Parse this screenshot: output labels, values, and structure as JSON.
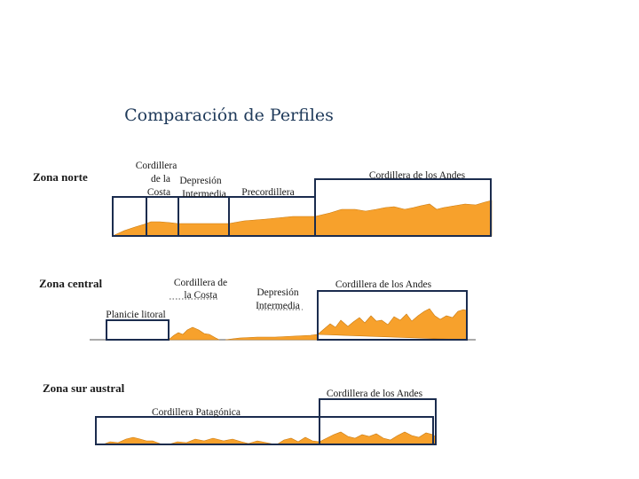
{
  "title": "Comparación de Perfiles",
  "norte": {
    "zone": "Zona norte",
    "cordillera_costa": [
      "Cordillera",
      "de la",
      "Costa"
    ],
    "depresion": [
      "Depresión",
      "Intermedia"
    ],
    "precordillera": "Precordillera",
    "andes": "Cordillera de los Andes"
  },
  "central": {
    "zone": "Zona central",
    "planicie": "Planicie litoral",
    "cordillera_costa": [
      "Cordillera de",
      "la Costa"
    ],
    "depresion": [
      "Depresión",
      "Intermedia"
    ],
    "andes": "Cordillera de los Andes"
  },
  "sur": {
    "zone": "Zona sur austral",
    "patagonica": "Cordillera Patagónica",
    "andes": "Cordillera de los Andes"
  },
  "colors": {
    "relief": "#f7a12c",
    "frame": "#1b2c4e",
    "title": "#1f3a5a"
  }
}
